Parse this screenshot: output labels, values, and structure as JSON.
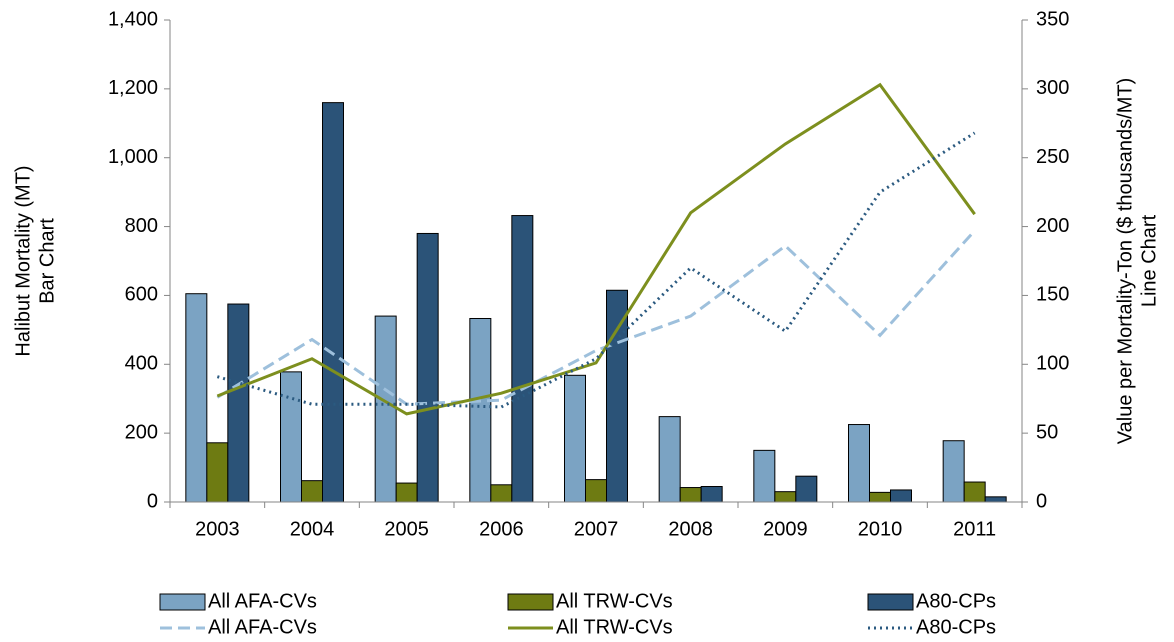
{
  "chart_data": {
    "type": "bar",
    "y_label": [
      "Halibut Mortality (MT)",
      "Bar Chart"
    ],
    "y2_label": [
      "Value per Mortality-Ton ($ thousands/MT)",
      "Line Chart"
    ],
    "categories": [
      "2003",
      "2004",
      "2005",
      "2006",
      "2007",
      "2008",
      "2009",
      "2010",
      "2011"
    ],
    "series": [
      {
        "name": "All AFA-CVs",
        "type": "bar",
        "color": "#7ba3c3",
        "values": [
          605,
          378,
          540,
          533,
          368,
          248,
          150,
          225,
          178
        ]
      },
      {
        "name": "All TRW-CVs",
        "type": "bar",
        "color": "#6e7b12",
        "values": [
          172,
          62,
          55,
          50,
          65,
          42,
          30,
          28,
          58
        ]
      },
      {
        "name": "A80-CPs",
        "type": "bar",
        "color": "#2b5378",
        "values": [
          575,
          1160,
          780,
          832,
          615,
          45,
          75,
          35,
          15
        ]
      },
      {
        "name": "All AFA-CVs",
        "type": "line",
        "axis": "y2",
        "dash": "dashed",
        "color": "#9ec0dc",
        "values": [
          76,
          118,
          71,
          74,
          110,
          135,
          186,
          121,
          197
        ]
      },
      {
        "name": "All TRW-CVs",
        "type": "line",
        "axis": "y2",
        "dash": "solid",
        "color": "#7d8f1e",
        "values": [
          77,
          104,
          64,
          79,
          101,
          210,
          260,
          303,
          209
        ]
      },
      {
        "name": "A80-CPs",
        "type": "line",
        "axis": "y2",
        "dash": "dotted",
        "color": "#2b5a80",
        "values": [
          91,
          71,
          71,
          69,
          104,
          170,
          124,
          225,
          268
        ]
      }
    ],
    "ylim": [
      0,
      1400
    ],
    "yticks": [
      0,
      {
        "value": 200,
        "label": "200"
      },
      400,
      600,
      800,
      {
        "value": 1000,
        "label": "1,000"
      },
      {
        "value": 1200,
        "label": "1,200"
      },
      {
        "value": 1400,
        "label": "1,400"
      }
    ],
    "y2lim": [
      0,
      350
    ],
    "y2ticks": [
      0,
      50,
      100,
      150,
      200,
      250,
      300,
      350
    ],
    "grid": false
  }
}
